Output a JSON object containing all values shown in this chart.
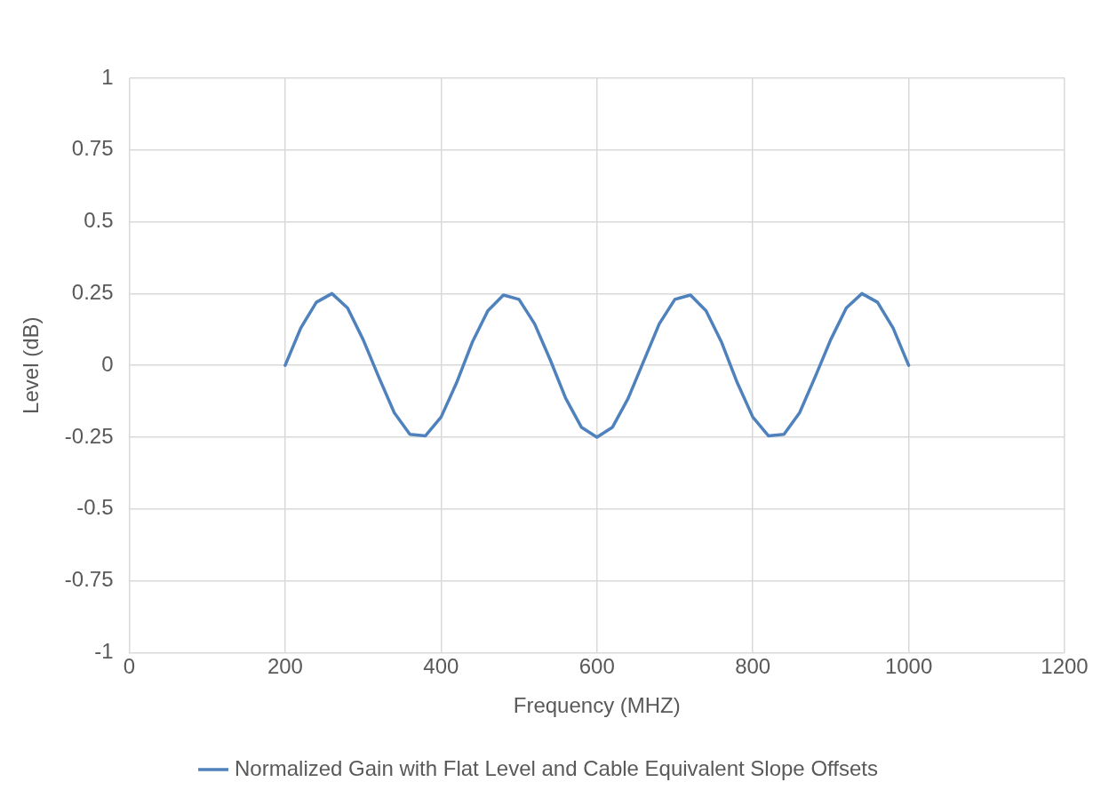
{
  "chart_data": {
    "type": "line",
    "xlabel": "Frequency (MHZ)",
    "ylabel": "Level (dB)",
    "x": [
      200,
      220,
      240,
      260,
      280,
      300,
      320,
      340,
      360,
      380,
      400,
      420,
      440,
      460,
      480,
      500,
      520,
      540,
      560,
      580,
      600,
      620,
      640,
      660,
      680,
      700,
      720,
      740,
      760,
      780,
      800,
      820,
      840,
      860,
      880,
      900,
      920,
      940,
      960,
      980,
      1000
    ],
    "series": [
      {
        "name": "Normalized Gain with Flat Level and Cable Equivalent Slope Offsets",
        "color": "#4f81bd",
        "values": [
          0,
          0.13,
          0.22,
          0.25,
          0.2,
          0.09,
          -0.04,
          -0.165,
          -0.24,
          -0.245,
          -0.18,
          -0.06,
          0.08,
          0.19,
          0.245,
          0.23,
          0.145,
          0.02,
          -0.115,
          -0.215,
          -0.25,
          -0.215,
          -0.115,
          0.015,
          0.145,
          0.23,
          0.245,
          0.19,
          0.08,
          -0.06,
          -0.18,
          -0.245,
          -0.24,
          -0.165,
          -0.04,
          0.09,
          0.2,
          0.25,
          0.22,
          0.13,
          0
        ]
      }
    ],
    "xlim": [
      0,
      1200
    ],
    "xticks": [
      0,
      200,
      400,
      600,
      800,
      1000,
      1200
    ],
    "ylim": [
      -1,
      1
    ],
    "yticks": [
      -1,
      -0.75,
      -0.5,
      -0.25,
      0,
      0.25,
      0.5,
      0.75,
      1
    ],
    "grid": true,
    "legend": "bottom",
    "marker": "none",
    "line_style": "solid"
  }
}
